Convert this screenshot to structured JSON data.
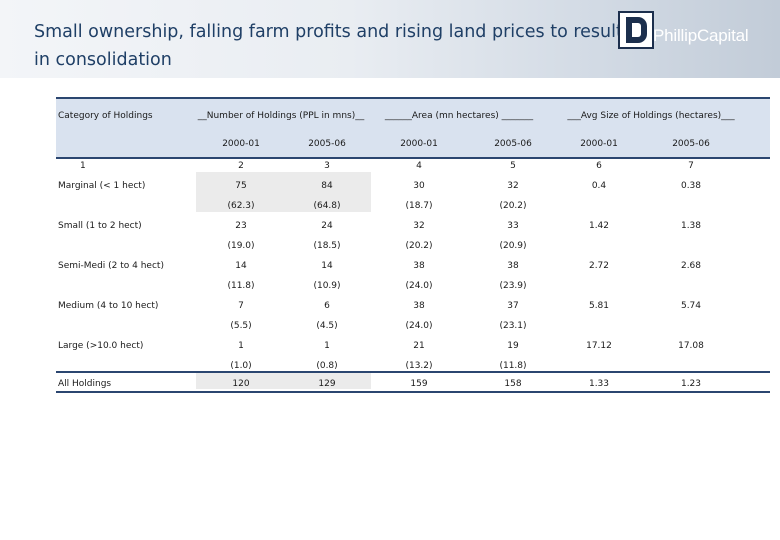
{
  "title": "Small ownership, falling farm profits and rising land prices to result in consolidation",
  "logo": {
    "text": "PhillipCapital"
  },
  "table": {
    "category_header": "Category of Holdings",
    "group_headers": [
      "__Number of  Holdings (PPL in mns)__",
      "______Area  (mn hectares) _______",
      "___Avg Size of Holdings  (hectares)___"
    ],
    "sub_headers": [
      "2000-01",
      "2005-06",
      "2000-01",
      "2005-06",
      "2000-01",
      "2005-06"
    ],
    "index_row": [
      "1",
      "2",
      "3",
      "4",
      "5",
      "6",
      "7"
    ],
    "rows": [
      {
        "label": "Marginal (< 1 hect)",
        "values": [
          "75",
          "84",
          "30",
          "32",
          "0.4",
          "0.38"
        ],
        "shares": [
          "(62.3)",
          "(64.8)",
          "(18.7)",
          "(20.2)"
        ]
      },
      {
        "label": "Small (1 to 2 hect)",
        "values": [
          "23",
          "24",
          "32",
          "33",
          "1.42",
          "1.38"
        ],
        "shares": [
          "(19.0)",
          "(18.5)",
          "(20.2)",
          "(20.9)"
        ]
      },
      {
        "label": "Semi-Medi (2 to 4 hect)",
        "values": [
          "14",
          "14",
          "38",
          "38",
          "2.72",
          "2.68"
        ],
        "shares": [
          "(11.8)",
          "(10.9)",
          "(24.0)",
          "(23.9)"
        ]
      },
      {
        "label": "Medium (4 to 10 hect)",
        "values": [
          "7",
          "6",
          "38",
          "37",
          "5.81",
          "5.74"
        ],
        "shares": [
          "(5.5)",
          "(4.5)",
          "(24.0)",
          "(23.1)"
        ]
      },
      {
        "label": "Large (>10.0 hect)",
        "values": [
          "1",
          "1",
          "21",
          "19",
          "17.12",
          "17.08"
        ],
        "shares": [
          "(1.0)",
          "(0.8)",
          "(13.2)",
          "(11.8)"
        ]
      }
    ],
    "total": {
      "label": "All Holdings",
      "values": [
        "120",
        "129",
        "159",
        "158",
        "1.33",
        "1.23"
      ]
    }
  }
}
